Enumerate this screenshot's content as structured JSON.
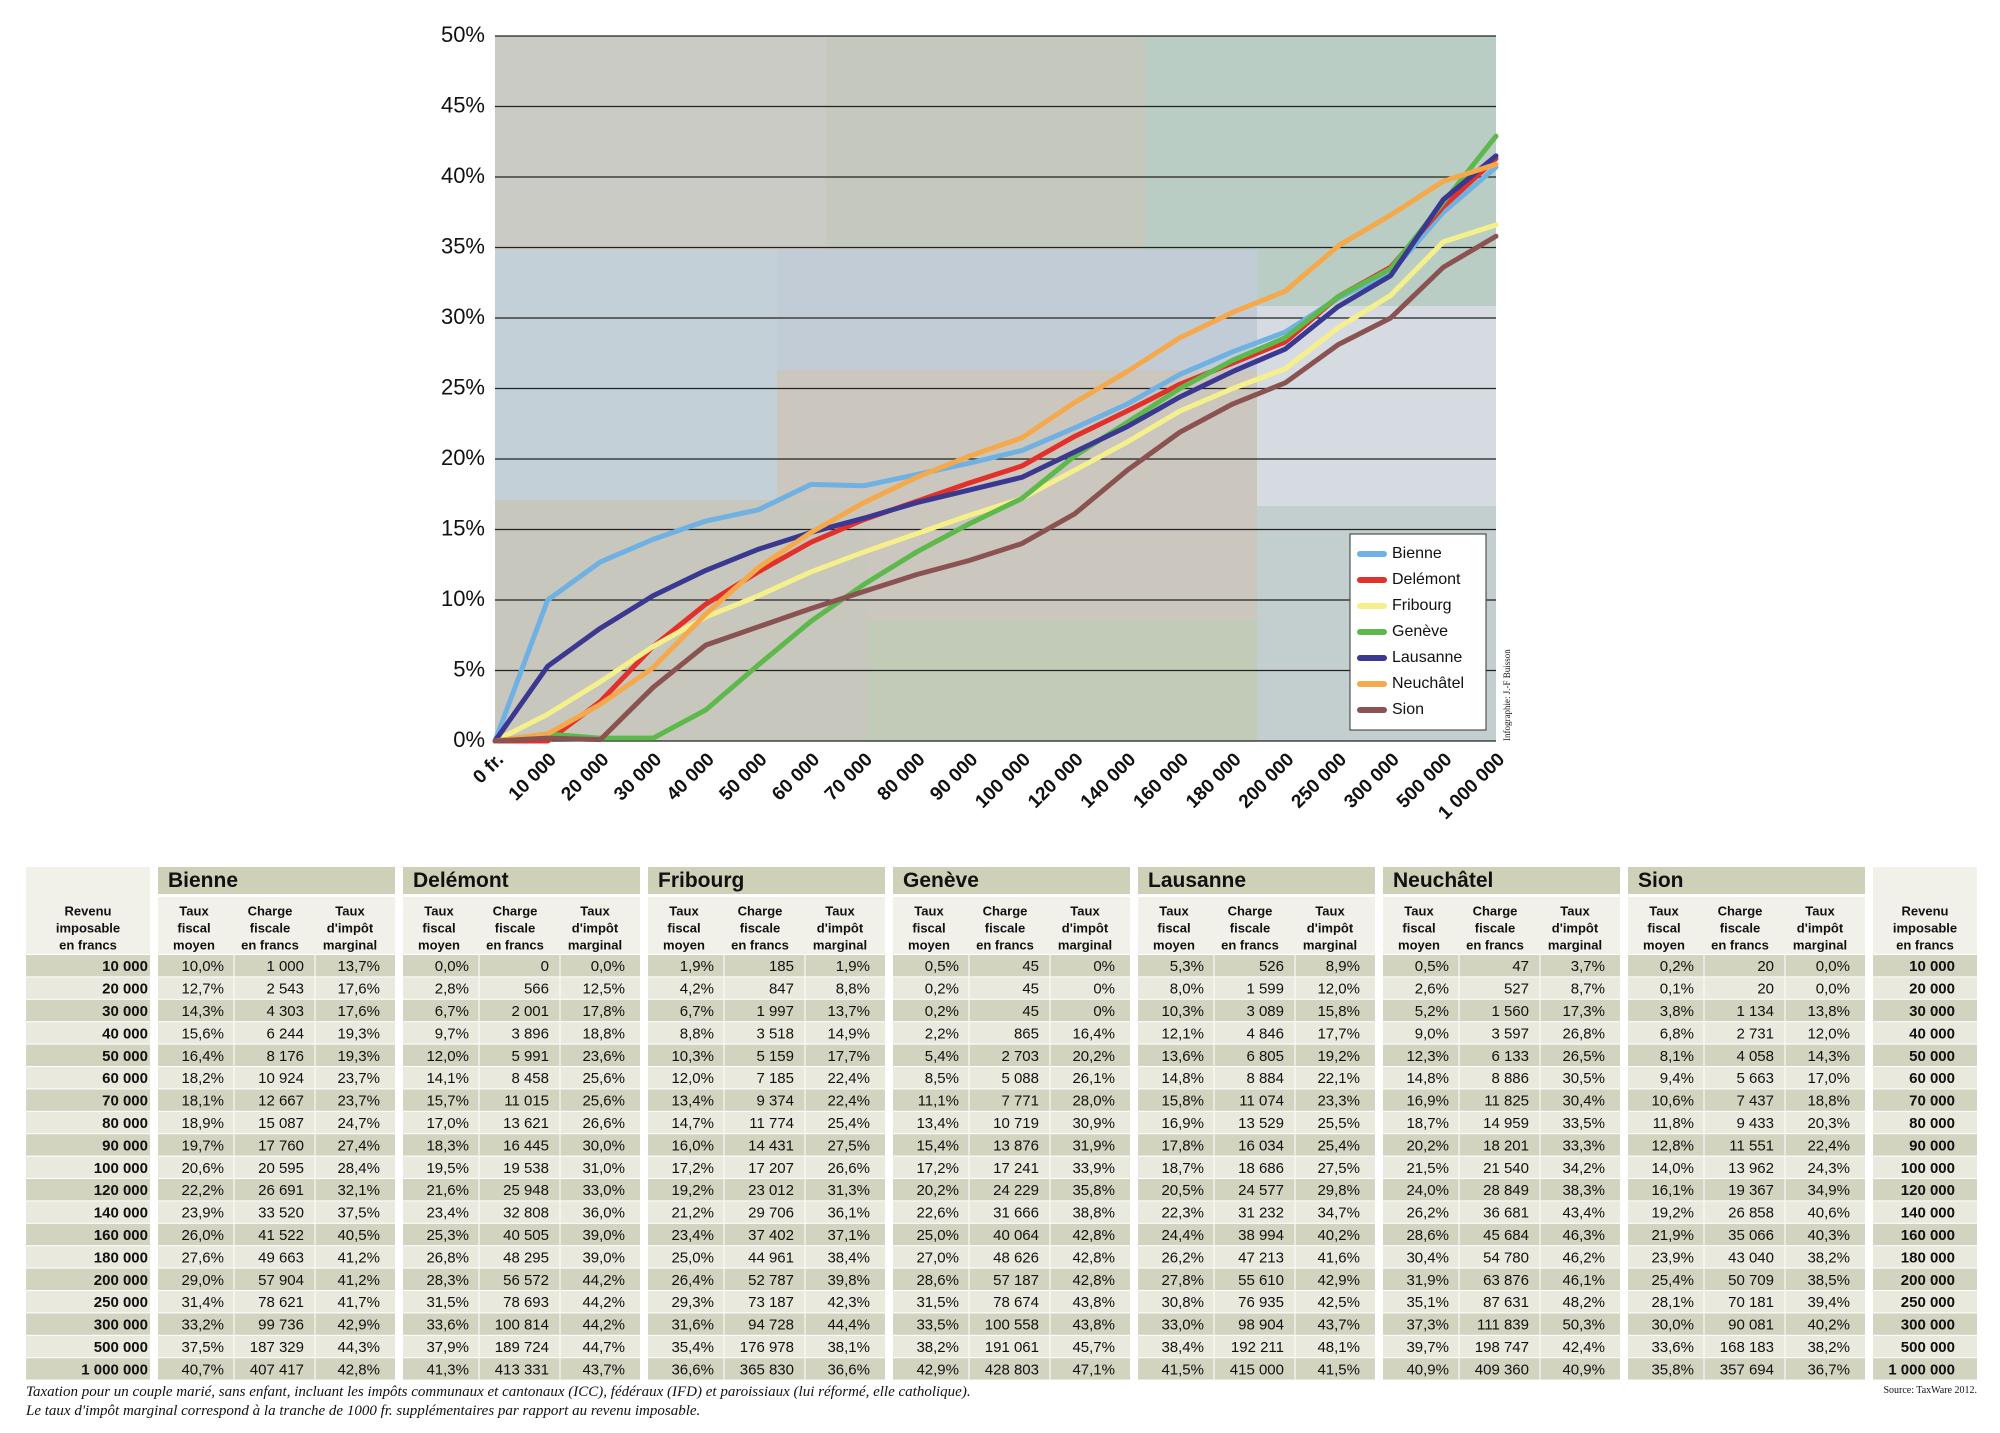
{
  "chart_data": {
    "type": "line",
    "categories": [
      "0 fr.",
      "10 000",
      "20 000",
      "30 000",
      "40 000",
      "50 000",
      "60 000",
      "70 000",
      "80 000",
      "90 000",
      "100 000",
      "120 000",
      "140 000",
      "160 000",
      "180 000",
      "200 000",
      "250 000",
      "300 000",
      "500 000",
      "1 000 000"
    ],
    "series": [
      {
        "name": "Bienne",
        "color": "#6fb1e2",
        "values": [
          0,
          10.0,
          12.7,
          14.3,
          15.6,
          16.4,
          18.2,
          18.1,
          18.9,
          19.7,
          20.6,
          22.2,
          23.9,
          26.0,
          27.6,
          29.0,
          31.4,
          33.2,
          37.5,
          40.7
        ]
      },
      {
        "name": "Delémont",
        "color": "#e2302b",
        "values": [
          0,
          0.0,
          2.8,
          6.7,
          9.7,
          12.0,
          14.1,
          15.7,
          17.0,
          18.3,
          19.5,
          21.6,
          23.4,
          25.3,
          26.8,
          28.3,
          31.5,
          33.6,
          37.9,
          41.3
        ]
      },
      {
        "name": "Fribourg",
        "color": "#f6f08c",
        "values": [
          0,
          1.9,
          4.2,
          6.7,
          8.8,
          10.3,
          12.0,
          13.4,
          14.7,
          16.0,
          17.2,
          19.2,
          21.2,
          23.4,
          25.0,
          26.4,
          29.3,
          31.6,
          35.4,
          36.6
        ]
      },
      {
        "name": "Genève",
        "color": "#5db94b",
        "values": [
          0,
          0.5,
          0.2,
          0.2,
          2.2,
          5.4,
          8.5,
          11.1,
          13.4,
          15.4,
          17.2,
          20.2,
          22.6,
          25.0,
          27.0,
          28.6,
          31.5,
          33.5,
          38.2,
          42.9
        ]
      },
      {
        "name": "Lausanne",
        "color": "#3b3891",
        "values": [
          0,
          5.3,
          8.0,
          10.3,
          12.1,
          13.6,
          14.8,
          15.8,
          16.9,
          17.8,
          18.7,
          20.5,
          22.3,
          24.4,
          26.2,
          27.8,
          30.8,
          33.0,
          38.4,
          41.5
        ]
      },
      {
        "name": "Neuchâtel",
        "color": "#f5a94b",
        "values": [
          0,
          0.5,
          2.6,
          5.2,
          9.0,
          12.3,
          14.8,
          16.9,
          18.7,
          20.2,
          21.5,
          24.0,
          26.2,
          28.6,
          30.4,
          31.9,
          35.1,
          37.3,
          39.7,
          40.9
        ]
      },
      {
        "name": "Sion",
        "color": "#8b5252",
        "values": [
          0,
          0.2,
          0.1,
          3.8,
          6.8,
          8.1,
          9.4,
          10.6,
          11.8,
          12.8,
          14.0,
          16.1,
          19.2,
          21.9,
          23.9,
          25.4,
          28.1,
          30.0,
          33.6,
          35.8
        ]
      }
    ],
    "ylim": [
      0,
      50
    ],
    "yticks": [
      {
        "value": 0,
        "label": "0%"
      },
      {
        "value": 5,
        "label": "5%"
      },
      {
        "value": 10,
        "label": "10%"
      },
      {
        "value": 15,
        "label": "15%"
      },
      {
        "value": 20,
        "label": "20%"
      },
      {
        "value": 25,
        "label": "25%"
      },
      {
        "value": 30,
        "label": "30%"
      },
      {
        "value": 35,
        "label": "35%"
      },
      {
        "value": 40,
        "label": "40%"
      },
      {
        "value": 45,
        "label": "45%"
      },
      {
        "value": 50,
        "label": "50%"
      }
    ],
    "grid": true,
    "legend": "lower right",
    "credit": "Infographie: J.-F Buisson"
  },
  "table": {
    "row_header": [
      "Revenu",
      "imposable",
      "en francs"
    ],
    "groups": [
      "Bienne",
      "Delémont",
      "Fribourg",
      "Genève",
      "Lausanne",
      "Neuchâtel",
      "Sion"
    ],
    "sub_headers": [
      [
        "Taux",
        "fiscal",
        "moyen"
      ],
      [
        "Charge",
        "fiscale",
        "en francs"
      ],
      [
        "Taux",
        "d'impôt",
        "marginal"
      ]
    ],
    "rows": [
      [
        "10 000",
        "10,0%",
        "1 000",
        "13,7%",
        "0,0%",
        "0",
        "0,0%",
        "1,9%",
        "185",
        "1,9%",
        "0,5%",
        "45",
        "0%",
        "5,3%",
        "526",
        "8,9%",
        "0,5%",
        "47",
        "3,7%",
        "0,2%",
        "20",
        "0,0%"
      ],
      [
        "20 000",
        "12,7%",
        "2 543",
        "17,6%",
        "2,8%",
        "566",
        "12,5%",
        "4,2%",
        "847",
        "8,8%",
        "0,2%",
        "45",
        "0%",
        "8,0%",
        "1 599",
        "12,0%",
        "2,6%",
        "527",
        "8,7%",
        "0,1%",
        "20",
        "0,0%"
      ],
      [
        "30 000",
        "14,3%",
        "4 303",
        "17,6%",
        "6,7%",
        "2 001",
        "17,8%",
        "6,7%",
        "1 997",
        "13,7%",
        "0,2%",
        "45",
        "0%",
        "10,3%",
        "3 089",
        "15,8%",
        "5,2%",
        "1 560",
        "17,3%",
        "3,8%",
        "1 134",
        "13,8%"
      ],
      [
        "40 000",
        "15,6%",
        "6 244",
        "19,3%",
        "9,7%",
        "3 896",
        "18,8%",
        "8,8%",
        "3 518",
        "14,9%",
        "2,2%",
        "865",
        "16,4%",
        "12,1%",
        "4 846",
        "17,7%",
        "9,0%",
        "3 597",
        "26,8%",
        "6,8%",
        "2 731",
        "12,0%"
      ],
      [
        "50 000",
        "16,4%",
        "8 176",
        "19,3%",
        "12,0%",
        "5 991",
        "23,6%",
        "10,3%",
        "5 159",
        "17,7%",
        "5,4%",
        "2 703",
        "20,2%",
        "13,6%",
        "6 805",
        "19,2%",
        "12,3%",
        "6 133",
        "26,5%",
        "8,1%",
        "4 058",
        "14,3%"
      ],
      [
        "60 000",
        "18,2%",
        "10 924",
        "23,7%",
        "14,1%",
        "8 458",
        "25,6%",
        "12,0%",
        "7 185",
        "22,4%",
        "8,5%",
        "5 088",
        "26,1%",
        "14,8%",
        "8 884",
        "22,1%",
        "14,8%",
        "8 886",
        "30,5%",
        "9,4%",
        "5 663",
        "17,0%"
      ],
      [
        "70 000",
        "18,1%",
        "12 667",
        "23,7%",
        "15,7%",
        "11 015",
        "25,6%",
        "13,4%",
        "9 374",
        "22,4%",
        "11,1%",
        "7 771",
        "28,0%",
        "15,8%",
        "11 074",
        "23,3%",
        "16,9%",
        "11 825",
        "30,4%",
        "10,6%",
        "7 437",
        "18,8%"
      ],
      [
        "80 000",
        "18,9%",
        "15 087",
        "24,7%",
        "17,0%",
        "13 621",
        "26,6%",
        "14,7%",
        "11 774",
        "25,4%",
        "13,4%",
        "10 719",
        "30,9%",
        "16,9%",
        "13 529",
        "25,5%",
        "18,7%",
        "14 959",
        "33,5%",
        "11,8%",
        "9 433",
        "20,3%"
      ],
      [
        "90 000",
        "19,7%",
        "17 760",
        "27,4%",
        "18,3%",
        "16 445",
        "30,0%",
        "16,0%",
        "14 431",
        "27,5%",
        "15,4%",
        "13 876",
        "31,9%",
        "17,8%",
        "16 034",
        "25,4%",
        "20,2%",
        "18 201",
        "33,3%",
        "12,8%",
        "11 551",
        "22,4%"
      ],
      [
        "100 000",
        "20,6%",
        "20 595",
        "28,4%",
        "19,5%",
        "19 538",
        "31,0%",
        "17,2%",
        "17 207",
        "26,6%",
        "17,2%",
        "17 241",
        "33,9%",
        "18,7%",
        "18 686",
        "27,5%",
        "21,5%",
        "21 540",
        "34,2%",
        "14,0%",
        "13 962",
        "24,3%"
      ],
      [
        "120 000",
        "22,2%",
        "26 691",
        "32,1%",
        "21,6%",
        "25 948",
        "33,0%",
        "19,2%",
        "23 012",
        "31,3%",
        "20,2%",
        "24 229",
        "35,8%",
        "20,5%",
        "24 577",
        "29,8%",
        "24,0%",
        "28 849",
        "38,3%",
        "16,1%",
        "19 367",
        "34,9%"
      ],
      [
        "140 000",
        "23,9%",
        "33 520",
        "37,5%",
        "23,4%",
        "32 808",
        "36,0%",
        "21,2%",
        "29 706",
        "36,1%",
        "22,6%",
        "31 666",
        "38,8%",
        "22,3%",
        "31 232",
        "34,7%",
        "26,2%",
        "36 681",
        "43,4%",
        "19,2%",
        "26 858",
        "40,6%"
      ],
      [
        "160 000",
        "26,0%",
        "41 522",
        "40,5%",
        "25,3%",
        "40 505",
        "39,0%",
        "23,4%",
        "37 402",
        "37,1%",
        "25,0%",
        "40 064",
        "42,8%",
        "24,4%",
        "38 994",
        "40,2%",
        "28,6%",
        "45 684",
        "46,3%",
        "21,9%",
        "35 066",
        "40,3%"
      ],
      [
        "180 000",
        "27,6%",
        "49 663",
        "41,2%",
        "26,8%",
        "48 295",
        "39,0%",
        "25,0%",
        "44 961",
        "38,4%",
        "27,0%",
        "48 626",
        "42,8%",
        "26,2%",
        "47 213",
        "41,6%",
        "30,4%",
        "54 780",
        "46,2%",
        "23,9%",
        "43 040",
        "38,2%"
      ],
      [
        "200 000",
        "29,0%",
        "57 904",
        "41,2%",
        "28,3%",
        "56 572",
        "44,2%",
        "26,4%",
        "52 787",
        "39,8%",
        "28,6%",
        "57 187",
        "42,8%",
        "27,8%",
        "55 610",
        "42,9%",
        "31,9%",
        "63 876",
        "46,1%",
        "25,4%",
        "50 709",
        "38,5%"
      ],
      [
        "250 000",
        "31,4%",
        "78 621",
        "41,7%",
        "31,5%",
        "78 693",
        "44,2%",
        "29,3%",
        "73 187",
        "42,3%",
        "31,5%",
        "78 674",
        "43,8%",
        "30,8%",
        "76 935",
        "42,5%",
        "35,1%",
        "87 631",
        "48,2%",
        "28,1%",
        "70 181",
        "39,4%"
      ],
      [
        "300 000",
        "33,2%",
        "99 736",
        "42,9%",
        "33,6%",
        "100 814",
        "44,2%",
        "31,6%",
        "94 728",
        "44,4%",
        "33,5%",
        "100 558",
        "43,8%",
        "33,0%",
        "98 904",
        "43,7%",
        "37,3%",
        "111 839",
        "50,3%",
        "30,0%",
        "90 081",
        "40,2%"
      ],
      [
        "500 000",
        "37,5%",
        "187 329",
        "44,3%",
        "37,9%",
        "189 724",
        "44,7%",
        "35,4%",
        "176 978",
        "38,1%",
        "38,2%",
        "191 061",
        "45,7%",
        "38,4%",
        "192 211",
        "48,1%",
        "39,7%",
        "198 747",
        "42,4%",
        "33,6%",
        "168 183",
        "38,2%"
      ],
      [
        "1 000 000",
        "40,7%",
        "407 417",
        "42,8%",
        "41,3%",
        "413 331",
        "43,7%",
        "36,6%",
        "365 830",
        "36,6%",
        "42,9%",
        "428 803",
        "47,1%",
        "41,5%",
        "415 000",
        "41,5%",
        "40,9%",
        "409 360",
        "40,9%",
        "35,8%",
        "357 694",
        "36,7%"
      ]
    ],
    "footnotes": [
      "Taxation pour un couple marié, sans enfant, incluant les impôts communaux et cantonaux (ICC), fédéraux (IFD) et paroissiaux (lui réformé,    elle catholique).",
      "Le taux d'impôt marginal correspond à la tranche de 1000 fr. supplémentaires par rapport au revenu imposable."
    ],
    "source": "Source: TaxWare 2012."
  }
}
